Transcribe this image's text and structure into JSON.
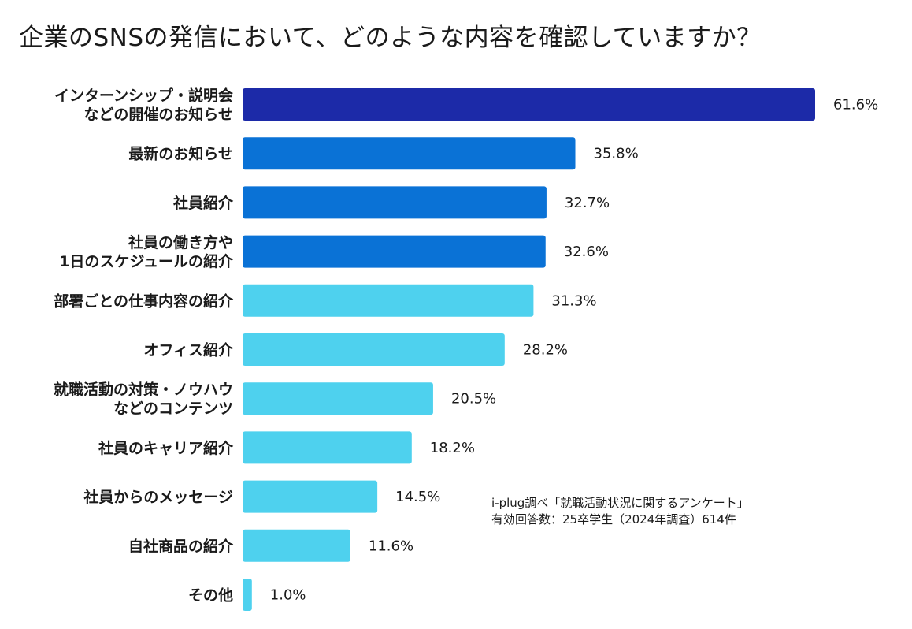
{
  "chart_data": {
    "type": "bar",
    "orientation": "horizontal",
    "title": "企業のSNSの発信において、どのような内容を確認していますか？",
    "xlabel": "",
    "ylabel": "",
    "unit": "%",
    "xlim": [
      0,
      61.6
    ],
    "grid": false,
    "legend": "none",
    "categories": [
      [
        "インターンシップ・説明会",
        "などの開催のお知らせ"
      ],
      [
        "最新のお知らせ"
      ],
      [
        "社員紹介"
      ],
      [
        "社員の働き方や",
        "1日のスケジュールの紹介"
      ],
      [
        "部署ごとの仕事内容の紹介"
      ],
      [
        "オフィス紹介"
      ],
      [
        "就職活動の対策・ノウハウ",
        "などのコンテンツ"
      ],
      [
        "社員のキャリア紹介"
      ],
      [
        "社員からのメッセージ"
      ],
      [
        "自社商品の紹介"
      ],
      [
        "その他"
      ]
    ],
    "values": [
      61.6,
      35.8,
      32.7,
      32.6,
      31.3,
      28.2,
      20.5,
      18.2,
      14.5,
      11.6,
      1.0
    ],
    "value_labels": [
      "61.6%",
      "35.8%",
      "32.7%",
      "32.6%",
      "31.3%",
      "28.2%",
      "20.5%",
      "18.2%",
      "14.5%",
      "11.6%",
      "1.0%"
    ],
    "bar_colors": [
      "#1c2aa8",
      "#0a72d6",
      "#0a72d6",
      "#0a72d6",
      "#4ed1ee",
      "#4ed1ee",
      "#4ed1ee",
      "#4ed1ee",
      "#4ed1ee",
      "#4ed1ee",
      "#4ed1ee"
    ]
  },
  "source": {
    "line1": "i-plug調べ「就職活動状況に関するアンケート」",
    "line2": "有効回答数：25卒学生（2024年調査）614件"
  }
}
